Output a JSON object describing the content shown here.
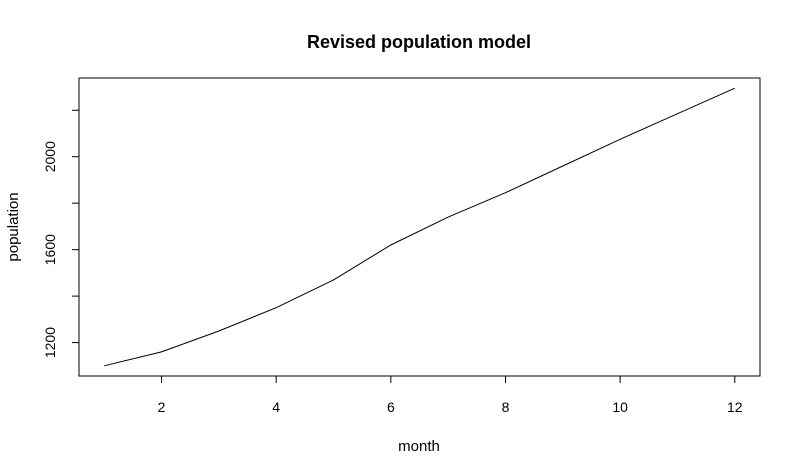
{
  "chart_data": {
    "type": "line",
    "title": "Revised population model",
    "xlabel": "month",
    "ylabel": "population",
    "x": [
      1,
      2,
      3,
      4,
      5,
      6,
      7,
      8,
      9,
      10,
      11,
      12
    ],
    "series": [
      {
        "values": [
          1100,
          1160,
          1250,
          1350,
          1470,
          1620,
          1740,
          1845,
          1960,
          2075,
          2185,
          2295
        ]
      }
    ],
    "x_ticks": [
      2,
      4,
      6,
      8,
      10,
      12
    ],
    "y_ticks": [
      1200,
      1600,
      2000
    ],
    "y_minor_ticks": [
      1400,
      1800,
      2200
    ],
    "xlim": [
      0.56,
      12.44
    ],
    "ylim": [
      1056.2,
      2338.8
    ],
    "grid": false,
    "legend": "none",
    "colors": {
      "line": "#000000",
      "axis": "#000000",
      "background": "#ffffff"
    }
  }
}
